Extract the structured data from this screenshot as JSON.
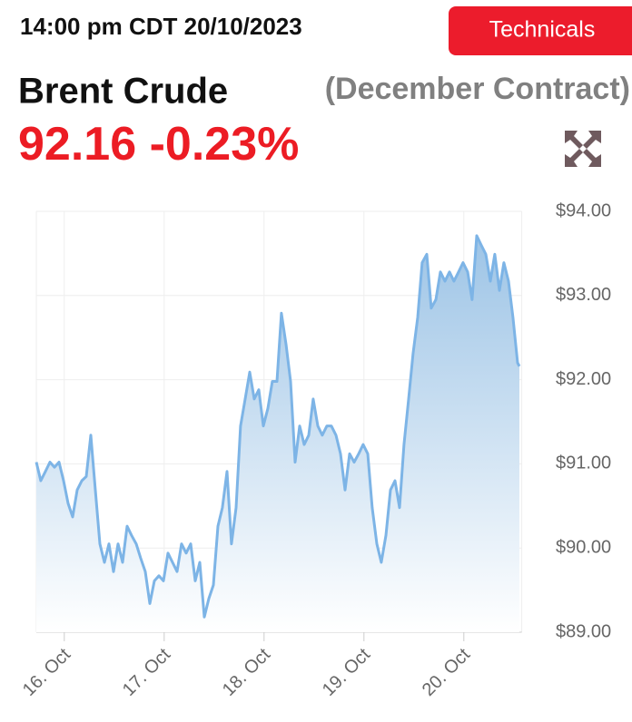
{
  "header": {
    "timestamp": "14:00 pm CDT 20/10/2023",
    "button": "Technicals",
    "title": "Brent Crude",
    "subtitle": "(December Contract)",
    "price": "92.16",
    "change": "-0.23%"
  },
  "chart_data": {
    "type": "area",
    "color": "#7db4e6",
    "grid": true,
    "xlim": [
      15.72,
      20.58
    ],
    "ylim": [
      89,
      94
    ],
    "xticks": [
      {
        "value": 16,
        "label": "16. Oct"
      },
      {
        "value": 17,
        "label": "17. Oct"
      },
      {
        "value": 18,
        "label": "18. Oct"
      },
      {
        "value": 19,
        "label": "19. Oct"
      },
      {
        "value": 20,
        "label": "20. Oct"
      }
    ],
    "yticks": [
      {
        "value": 89,
        "label": "$89.00"
      },
      {
        "value": 90,
        "label": "$90.00"
      },
      {
        "value": 91,
        "label": "$91.00"
      },
      {
        "value": 92,
        "label": "$92.00"
      },
      {
        "value": 93,
        "label": "$93.00"
      },
      {
        "value": 94,
        "label": "$94.00"
      }
    ],
    "x": [
      15.72,
      15.765,
      15.811,
      15.856,
      15.902,
      15.947,
      15.993,
      16.038,
      16.084,
      16.129,
      16.175,
      16.22,
      16.265,
      16.311,
      16.356,
      16.402,
      16.447,
      16.493,
      16.538,
      16.584,
      16.629,
      16.674,
      16.72,
      16.765,
      16.811,
      16.856,
      16.902,
      16.947,
      16.993,
      17.038,
      17.084,
      17.129,
      17.174,
      17.22,
      17.265,
      17.311,
      17.356,
      17.402,
      17.447,
      17.493,
      17.538,
      17.583,
      17.629,
      17.674,
      17.72,
      17.765,
      17.811,
      17.856,
      17.902,
      17.947,
      17.993,
      18.038,
      18.083,
      18.129,
      18.174,
      18.22,
      18.265,
      18.311,
      18.356,
      18.402,
      18.447,
      18.492,
      18.538,
      18.583,
      18.629,
      18.674,
      18.72,
      18.765,
      18.811,
      18.856,
      18.902,
      18.947,
      18.992,
      19.038,
      19.083,
      19.129,
      19.174,
      19.22,
      19.265,
      19.311,
      19.356,
      19.401,
      19.447,
      19.492,
      19.538,
      19.583,
      19.629,
      19.674,
      19.72,
      19.765,
      19.811,
      19.856,
      19.901,
      19.947,
      19.992,
      20.038,
      20.083,
      20.129,
      20.174,
      20.22,
      20.265,
      20.31,
      20.356,
      20.401,
      20.447,
      20.492,
      20.538,
      20.556
    ],
    "values": [
      91.02,
      90.8,
      90.91,
      91.02,
      90.96,
      91.02,
      90.8,
      90.53,
      90.37,
      90.69,
      90.8,
      90.85,
      91.34,
      90.69,
      90.05,
      89.83,
      90.05,
      89.72,
      90.05,
      89.83,
      90.26,
      90.15,
      90.05,
      89.88,
      89.72,
      89.34,
      89.61,
      89.67,
      89.61,
      89.94,
      89.83,
      89.72,
      90.05,
      89.94,
      90.05,
      89.61,
      89.83,
      89.18,
      89.4,
      89.56,
      90.26,
      90.48,
      90.91,
      90.05,
      90.48,
      91.45,
      91.77,
      92.09,
      91.77,
      91.88,
      91.45,
      91.66,
      91.98,
      91.98,
      92.79,
      92.42,
      91.98,
      91.02,
      91.45,
      91.23,
      91.34,
      91.77,
      91.45,
      91.34,
      91.45,
      91.45,
      91.34,
      91.12,
      90.69,
      91.12,
      91.02,
      91.12,
      91.23,
      91.12,
      90.48,
      90.05,
      89.83,
      90.15,
      90.69,
      90.8,
      90.48,
      91.23,
      91.77,
      92.31,
      92.74,
      93.39,
      93.49,
      92.85,
      92.95,
      93.28,
      93.17,
      93.28,
      93.17,
      93.28,
      93.39,
      93.28,
      92.95,
      93.71,
      93.6,
      93.49,
      93.17,
      93.49,
      93.06,
      93.39,
      93.17,
      92.74,
      92.2,
      92.16
    ]
  }
}
